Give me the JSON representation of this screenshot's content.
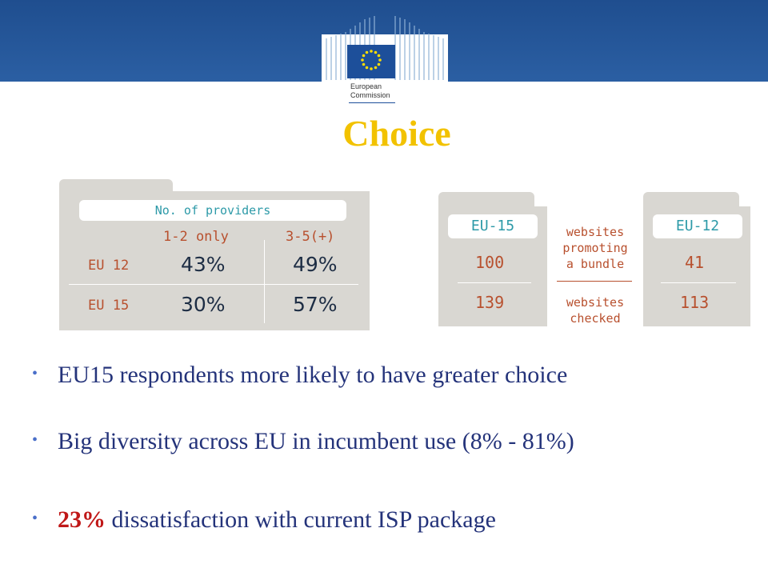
{
  "header": {
    "logo_line1": "European",
    "logo_line2": "Commission",
    "title": "Choice"
  },
  "providers_table": {
    "caption": "No. of providers",
    "col1": "1-2 only",
    "col2": "3-5(+)",
    "rows": [
      {
        "label": "EU 12",
        "v1": "43%",
        "v2": "49%"
      },
      {
        "label": "EU 15",
        "v1": "30%",
        "v2": "57%"
      }
    ]
  },
  "bundle": {
    "eu15_label": "EU-15",
    "eu15_top": "100",
    "eu15_bottom": "139",
    "eu12_label": "EU-12",
    "eu12_top": "41",
    "eu12_bottom": "113",
    "middle_top_l1": "websites",
    "middle_top_l2": "promoting",
    "middle_top_l3": "a bundle",
    "middle_bottom_l1": "websites",
    "middle_bottom_l2": "checked"
  },
  "bullets": {
    "b1": "EU15 respondents more likely to have greater choice",
    "b2": "Big diversity across EU in incumbent use (8% - 81%)",
    "b3_highlight": "23%",
    "b3_rest": " dissatisfaction with current ISP package",
    "bullet_char": "•"
  },
  "colors": {
    "header_bar": "#2b5fa3",
    "title": "#f2c200",
    "bullet_text": "#24337a",
    "highlight": "#c01818",
    "table_label": "#b8502e",
    "table_teal": "#2d9aa8"
  }
}
